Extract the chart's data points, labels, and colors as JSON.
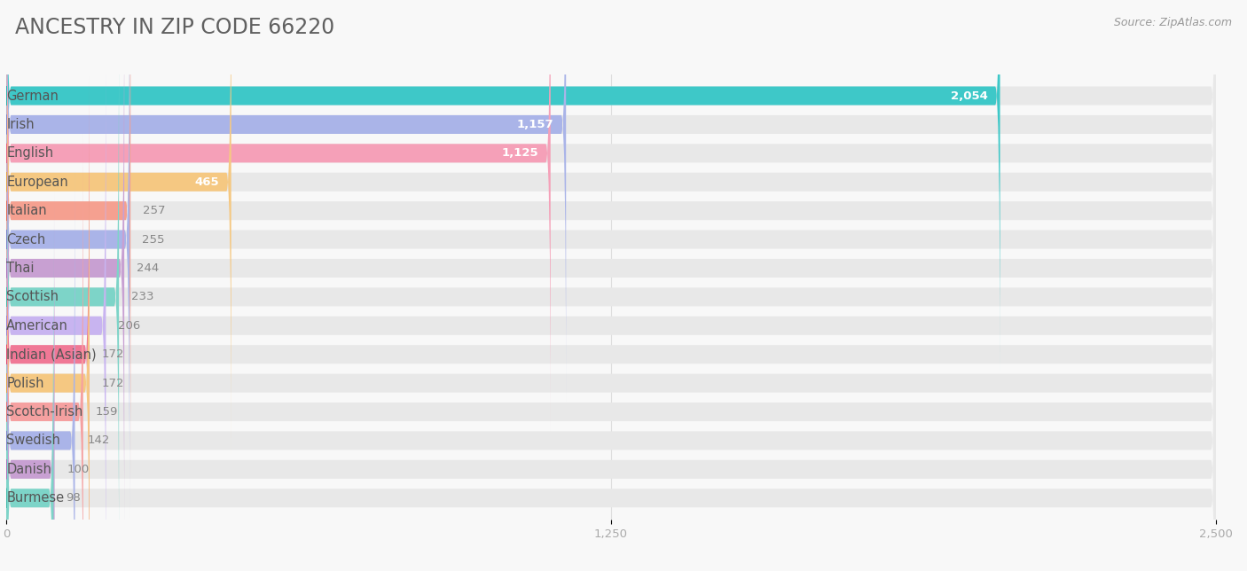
{
  "title": "ANCESTRY IN ZIP CODE 66220",
  "source": "Source: ZipAtlas.com",
  "categories": [
    "German",
    "Irish",
    "English",
    "European",
    "Italian",
    "Czech",
    "Thai",
    "Scottish",
    "American",
    "Indian (Asian)",
    "Polish",
    "Scotch-Irish",
    "Swedish",
    "Danish",
    "Burmese"
  ],
  "values": [
    2054,
    1157,
    1125,
    465,
    257,
    255,
    244,
    233,
    206,
    172,
    172,
    159,
    142,
    100,
    98
  ],
  "bar_colors": [
    "#3ec8c8",
    "#aab4e8",
    "#f5a0b8",
    "#f5c882",
    "#f5a090",
    "#aab4e8",
    "#c8a0d2",
    "#7dd4c8",
    "#c8b4f0",
    "#f07896",
    "#f5c882",
    "#f5a0a0",
    "#aab4e8",
    "#c8a0d2",
    "#7dd4c8"
  ],
  "circle_colors": [
    "#2aacac",
    "#7880c8",
    "#e06080",
    "#e0a040",
    "#e06850",
    "#7880c8",
    "#a870b8",
    "#40b8a8",
    "#9880d0",
    "#e04870",
    "#e0a040",
    "#e07070",
    "#7880c8",
    "#a870b8",
    "#40b8a8"
  ],
  "bg_color": "#f8f8f8",
  "bar_bg_color": "#e8e8e8",
  "xlim": [
    0,
    2500
  ],
  "xticks": [
    0,
    1250,
    2500
  ],
  "xtick_labels": [
    "0",
    "1,250",
    "2,500"
  ],
  "title_fontsize": 17,
  "label_fontsize": 10.5,
  "value_fontsize": 9.5,
  "bar_height": 0.65,
  "value_label_inside": [
    true,
    true,
    true,
    true,
    false,
    false,
    false,
    false,
    false,
    false,
    false,
    false,
    false,
    false,
    false
  ]
}
